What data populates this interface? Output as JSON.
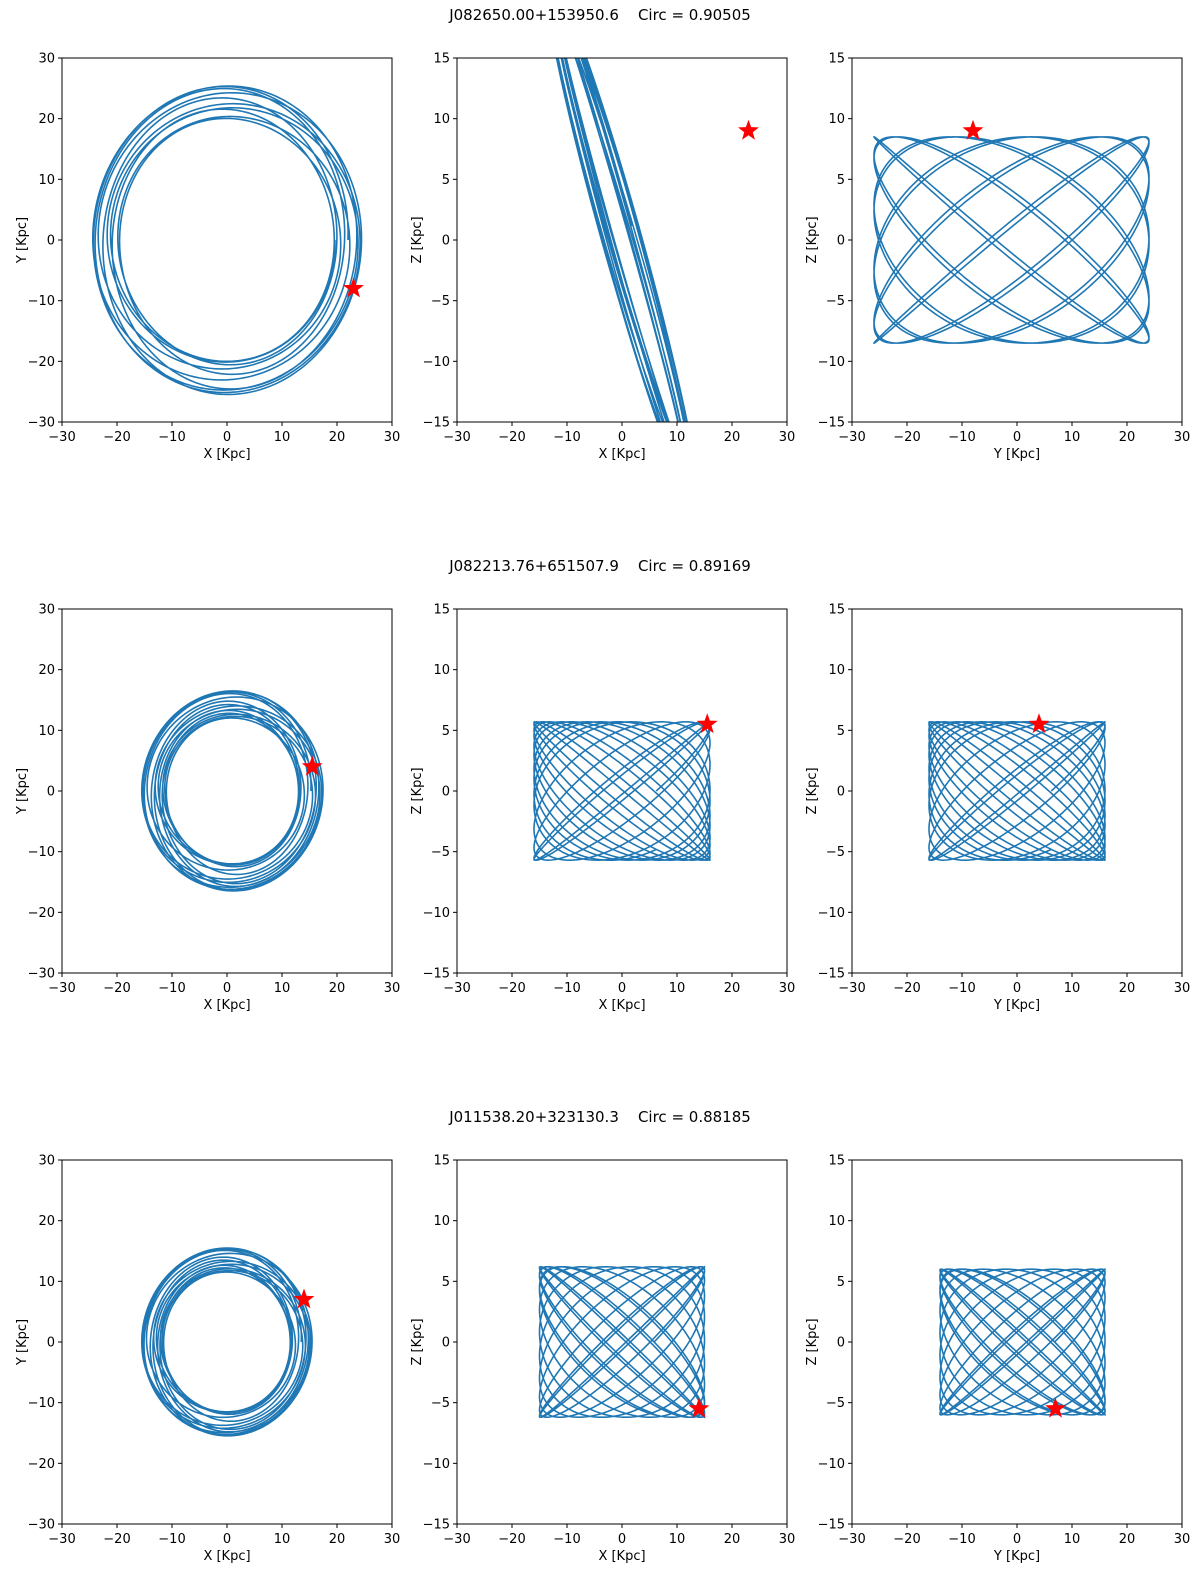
{
  "colors": {
    "orbit": "#1f77b4",
    "star": "#ff0000",
    "axes": "#000000"
  },
  "rows": [
    {
      "object": "J082650.00+153950.6",
      "circ_label": "Circ = 0.90505"
    },
    {
      "object": "J082213.76+651507.9",
      "circ_label": "Circ = 0.89169"
    },
    {
      "object": "J011538.20+323130.3",
      "circ_label": "Circ = 0.88185"
    }
  ],
  "chart_data": [
    {
      "type": "line",
      "title": "J082650.00+153950.6 Circ = 0.90505",
      "xlabel": "X [Kpc]",
      "ylabel": "Y [Kpc]",
      "xlim": [
        -30,
        30
      ],
      "ylim": [
        -30,
        30
      ],
      "xticks": [
        -30,
        -20,
        -10,
        0,
        10,
        20,
        30
      ],
      "yticks": [
        -30,
        -20,
        -10,
        0,
        10,
        20,
        30
      ],
      "orbit": {
        "shape": "rosette",
        "x_center": 0,
        "y_center": 0,
        "x_semi_min": 19.5,
        "x_semi_max": 24.5,
        "y_semi_min": 20,
        "y_semi_max": 25.5,
        "rotation_deg": 0,
        "loops": 10
      },
      "current_position": {
        "x": 23,
        "y": -8
      }
    },
    {
      "type": "line",
      "xlabel": "X [Kpc]",
      "ylabel": "Z [Kpc]",
      "xlim": [
        -30,
        30
      ],
      "ylim": [
        -15,
        15
      ],
      "xticks": [
        -30,
        -20,
        -10,
        0,
        10,
        20,
        30
      ],
      "yticks": [
        -15,
        -10,
        -5,
        0,
        5,
        10,
        15
      ],
      "orbit": {
        "shape": "tilted_band",
        "x_center": 0,
        "y_center": 0,
        "x_semi_min": 1.2,
        "x_semi_max": 3.2,
        "y_semi_min": 21,
        "y_semi_max": 26,
        "rotation_deg": 32,
        "loops": 10
      },
      "current_position": {
        "x": 23,
        "y": 9
      }
    },
    {
      "type": "line",
      "xlabel": "Y [Kpc]",
      "ylabel": "Z [Kpc]",
      "xlim": [
        -30,
        30
      ],
      "ylim": [
        -15,
        15
      ],
      "xticks": [
        -30,
        -20,
        -10,
        0,
        10,
        20,
        30
      ],
      "yticks": [
        -15,
        -10,
        -5,
        0,
        5,
        10,
        15
      ],
      "orbit": {
        "shape": "lissajous",
        "x_center": -1,
        "y_center": 0,
        "x_amp": 25,
        "y_amp": 8.5,
        "freq_ratio": 1.1,
        "loops": 10
      },
      "current_position": {
        "x": -8,
        "y": 9
      }
    },
    {
      "type": "line",
      "title": "J082213.76+651507.9 Circ = 0.89169",
      "xlabel": "X [Kpc]",
      "ylabel": "Y [Kpc]",
      "xlim": [
        -30,
        30
      ],
      "ylim": [
        -30,
        30
      ],
      "xticks": [
        -30,
        -20,
        -10,
        0,
        10,
        20,
        30
      ],
      "yticks": [
        -30,
        -20,
        -10,
        0,
        10,
        20,
        30
      ],
      "orbit": {
        "shape": "rosette",
        "x_center": 1,
        "y_center": 0,
        "x_semi_min": 12,
        "x_semi_max": 16.5,
        "y_semi_min": 12,
        "y_semi_max": 16.5,
        "rotation_deg": 0,
        "loops": 14
      },
      "current_position": {
        "x": 15.5,
        "y": 4
      }
    },
    {
      "type": "line",
      "xlabel": "X [Kpc]",
      "ylabel": "Z [Kpc]",
      "xlim": [
        -30,
        30
      ],
      "ylim": [
        -15,
        15
      ],
      "xticks": [
        -30,
        -20,
        -10,
        0,
        10,
        20,
        30
      ],
      "yticks": [
        -15,
        -10,
        -5,
        0,
        5,
        10,
        15
      ],
      "orbit": {
        "shape": "lissajous",
        "x_center": 0,
        "y_center": 0,
        "x_amp": 16,
        "y_amp": 5.7,
        "freq_ratio": 1.06,
        "loops": 14
      },
      "current_position": {
        "x": 15.5,
        "y": 5.5
      }
    },
    {
      "type": "line",
      "xlabel": "Y [Kpc]",
      "ylabel": "Z [Kpc]",
      "xlim": [
        -30,
        30
      ],
      "ylim": [
        -15,
        15
      ],
      "xticks": [
        -30,
        -20,
        -10,
        0,
        10,
        20,
        30
      ],
      "yticks": [
        -15,
        -10,
        -5,
        0,
        5,
        10,
        15
      ],
      "orbit": {
        "shape": "lissajous",
        "x_center": 0,
        "y_center": 0,
        "x_amp": 16,
        "y_amp": 5.7,
        "freq_ratio": 1.06,
        "loops": 14
      },
      "current_position": {
        "x": 4,
        "y": 5.5
      }
    },
    {
      "type": "line",
      "title": "J011538.20+323130.3 Circ = 0.88185",
      "xlabel": "X [Kpc]",
      "ylabel": "Y [Kpc]",
      "xlim": [
        -30,
        30
      ],
      "ylim": [
        -30,
        30
      ],
      "xticks": [
        -30,
        -20,
        -10,
        0,
        10,
        20,
        30
      ],
      "yticks": [
        -30,
        -20,
        -10,
        0,
        10,
        20,
        30
      ],
      "orbit": {
        "shape": "rosette",
        "x_center": 0,
        "y_center": 0,
        "x_semi_min": 11.5,
        "x_semi_max": 15.5,
        "y_semi_min": 11.5,
        "y_semi_max": 15.5,
        "rotation_deg": 0,
        "loops": 14
      },
      "current_position": {
        "x": 14,
        "y": 7
      }
    },
    {
      "type": "line",
      "xlabel": "X [Kpc]",
      "ylabel": "Z [Kpc]",
      "xlim": [
        -30,
        30
      ],
      "ylim": [
        -15,
        15
      ],
      "xticks": [
        -30,
        -20,
        -10,
        0,
        10,
        20,
        30
      ],
      "yticks": [
        -15,
        -10,
        -5,
        0,
        5,
        10,
        15
      ],
      "orbit": {
        "shape": "lissajous",
        "x_center": 0,
        "y_center": 0,
        "x_amp": 15,
        "y_amp": 6.2,
        "freq_ratio": 1.05,
        "loops": 14
      },
      "current_position": {
        "x": 14,
        "y": -5.5
      }
    },
    {
      "type": "line",
      "xlabel": "Y [Kpc]",
      "ylabel": "Z [Kpc]",
      "xlim": [
        -30,
        30
      ],
      "ylim": [
        -15,
        15
      ],
      "xticks": [
        -30,
        -20,
        -10,
        0,
        10,
        20,
        30
      ],
      "yticks": [
        -15,
        -10,
        -5,
        0,
        5,
        10,
        15
      ],
      "orbit": {
        "shape": "lissajous",
        "x_center": 1,
        "y_center": 0,
        "x_amp": 15,
        "y_amp": 6,
        "freq_ratio": 1.05,
        "loops": 14
      },
      "current_position": {
        "x": 7,
        "y": -5.5
      }
    }
  ]
}
